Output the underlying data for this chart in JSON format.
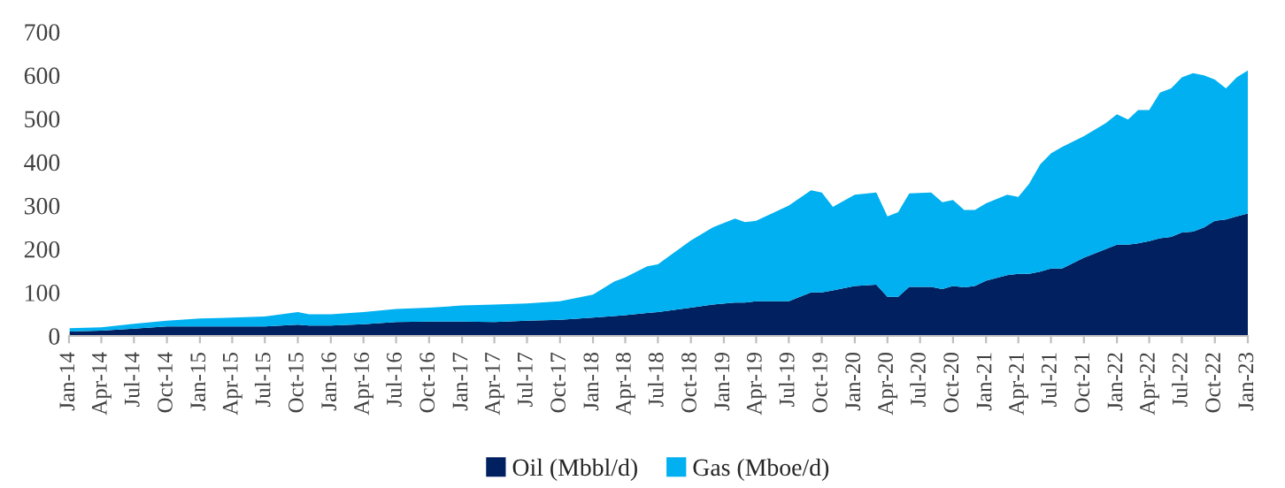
{
  "chart_data": {
    "type": "area",
    "stacked": true,
    "x": [
      "2014-01",
      "2014-04",
      "2014-07",
      "2014-10",
      "2015-01",
      "2015-04",
      "2015-07",
      "2015-10",
      "2015-11",
      "2016-01",
      "2016-04",
      "2016-07",
      "2016-10",
      "2017-01",
      "2017-04",
      "2017-07",
      "2017-10",
      "2018-01",
      "2018-03",
      "2018-04",
      "2018-06",
      "2018-07",
      "2018-10",
      "2018-12",
      "2019-02",
      "2019-03",
      "2019-04",
      "2019-07",
      "2019-09",
      "2019-10",
      "2019-11",
      "2020-01",
      "2020-03",
      "2020-04",
      "2020-05",
      "2020-06",
      "2020-08",
      "2020-09",
      "2020-10",
      "2020-11",
      "2020-12",
      "2021-01",
      "2021-03",
      "2021-04",
      "2021-05",
      "2021-06",
      "2021-07",
      "2021-08",
      "2021-10",
      "2021-12",
      "2022-01",
      "2022-02",
      "2022-03",
      "2022-04",
      "2022-05",
      "2022-06",
      "2022-07",
      "2022-08",
      "2022-09",
      "2022-10",
      "2022-11",
      "2022-12",
      "2023-01"
    ],
    "series": [
      {
        "name": "Oil (Mbbl/d)",
        "color": "#002060",
        "values": [
          10,
          12,
          17,
          22,
          22,
          22,
          22,
          26,
          24,
          24,
          27,
          32,
          33,
          33,
          32,
          35,
          37,
          42,
          46,
          48,
          53,
          55,
          65,
          72,
          77,
          77,
          80,
          80,
          100,
          100,
          105,
          115,
          118,
          90,
          90,
          113,
          113,
          108,
          115,
          112,
          115,
          127,
          140,
          143,
          143,
          148,
          155,
          155,
          180,
          200,
          210,
          210,
          213,
          218,
          225,
          228,
          238,
          240,
          250,
          265,
          268,
          275,
          282
        ]
      },
      {
        "name": "Gas (Mboe/d)",
        "color": "#00b0f0",
        "values": [
          8,
          8,
          11,
          13,
          18,
          20,
          23,
          29,
          26,
          26,
          28,
          30,
          32,
          37,
          40,
          40,
          43,
          53,
          79,
          87,
          107,
          110,
          155,
          178,
          193,
          185,
          185,
          220,
          235,
          230,
          192,
          210,
          212,
          185,
          195,
          215,
          217,
          200,
          198,
          178,
          175,
          178,
          185,
          177,
          207,
          247,
          265,
          280,
          280,
          290,
          300,
          288,
          307,
          302,
          335,
          342,
          357,
          365,
          350,
          325,
          302,
          320,
          329
        ]
      }
    ],
    "ylim": [
      0,
      700
    ],
    "yticks": [
      0,
      100,
      200,
      300,
      400,
      500,
      600,
      700
    ],
    "xlim": [
      "2014-01",
      "2023-01"
    ],
    "xticks": [
      {
        "value": "2014-01",
        "label": "Jan-14"
      },
      {
        "value": "2014-04",
        "label": "Apr-14"
      },
      {
        "value": "2014-07",
        "label": "Jul-14"
      },
      {
        "value": "2014-10",
        "label": "Oct-14"
      },
      {
        "value": "2015-01",
        "label": "Jan-15"
      },
      {
        "value": "2015-04",
        "label": "Apr-15"
      },
      {
        "value": "2015-07",
        "label": "Jul-15"
      },
      {
        "value": "2015-10",
        "label": "Oct-15"
      },
      {
        "value": "2016-01",
        "label": "Jan-16"
      },
      {
        "value": "2016-04",
        "label": "Apr-16"
      },
      {
        "value": "2016-07",
        "label": "Jul-16"
      },
      {
        "value": "2016-10",
        "label": "Oct-16"
      },
      {
        "value": "2017-01",
        "label": "Jan-17"
      },
      {
        "value": "2017-04",
        "label": "Apr-17"
      },
      {
        "value": "2017-07",
        "label": "Jul-17"
      },
      {
        "value": "2017-10",
        "label": "Oct-17"
      },
      {
        "value": "2018-01",
        "label": "Jan-18"
      },
      {
        "value": "2018-04",
        "label": "Apr-18"
      },
      {
        "value": "2018-07",
        "label": "Jul-18"
      },
      {
        "value": "2018-10",
        "label": "Oct-18"
      },
      {
        "value": "2019-01",
        "label": "Jan-19"
      },
      {
        "value": "2019-04",
        "label": "Apr-19"
      },
      {
        "value": "2019-07",
        "label": "Jul-19"
      },
      {
        "value": "2019-10",
        "label": "Oct-19"
      },
      {
        "value": "2020-01",
        "label": "Jan-20"
      },
      {
        "value": "2020-04",
        "label": "Apr-20"
      },
      {
        "value": "2020-07",
        "label": "Jul-20"
      },
      {
        "value": "2020-10",
        "label": "Oct-20"
      },
      {
        "value": "2021-01",
        "label": "Jan-21"
      },
      {
        "value": "2021-04",
        "label": "Apr-21"
      },
      {
        "value": "2021-07",
        "label": "Jul-21"
      },
      {
        "value": "2021-10",
        "label": "Oct-21"
      },
      {
        "value": "2022-01",
        "label": "Jan-22"
      },
      {
        "value": "2022-04",
        "label": "Apr-22"
      },
      {
        "value": "2022-07",
        "label": "Jul-22"
      },
      {
        "value": "2022-10",
        "label": "Oct-22"
      },
      {
        "value": "2023-01",
        "label": "Jan-23"
      }
    ],
    "grid": false,
    "legend": "bottom"
  }
}
